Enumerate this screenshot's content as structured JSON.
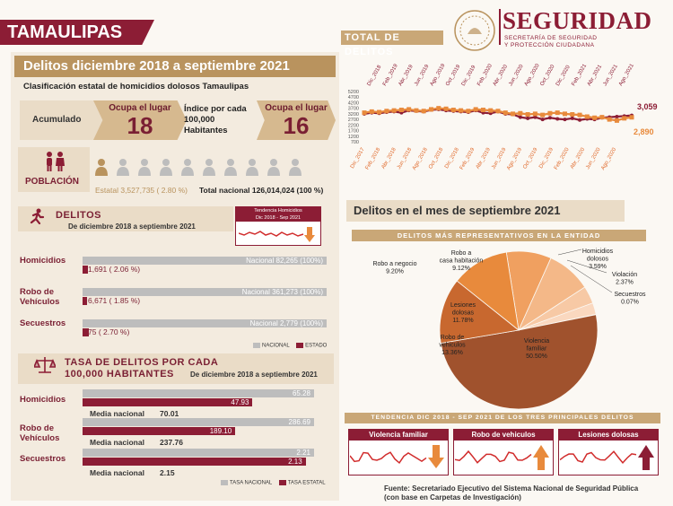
{
  "header": {
    "state": "TAMAULIPAS",
    "brand": "SEGURIDAD",
    "brand_sub1": "SECRETARÍA DE SEGURIDAD",
    "brand_sub2": "Y PROTECCIÓN CIUDADANA"
  },
  "left": {
    "title": "Delitos diciembre 2018 a septiembre 2021",
    "classification": "Clasificación estatal de homicidios dolosos Tamaulipas",
    "acumulado_label": "Acumulado",
    "rank1_small": "Ocupa el lugar",
    "rank1_value": "18",
    "indice_label": "Índice por cada 100,000 Habitantes",
    "rank2_small": "Ocupa el lugar",
    "rank2_value": "16",
    "poblacion_label": "POBLACIÓN",
    "poblacion_estatal": "Estatal 3,527,735 ( 2.80 %)",
    "poblacion_nacional": "Total nacional 126,014,024 (100 %)",
    "delitos_title": "DELITOS",
    "delitos_sub": "De diciembre 2018 a septiembre 2021",
    "tendencia_title": "Tendencia Homicidios",
    "tendencia_sub": "Dic 2018 - Sep 2021",
    "legend_nacional": "NACIONAL",
    "legend_estado": "ESTADO",
    "tasa_title1": "TASA DE DELITOS POR CADA",
    "tasa_title2": "100,000 HABITANTES",
    "tasa_sub": "De diciembre 2018 a septiembre 2021",
    "media_label": "Media nacional",
    "legend_tasa_nacional": "TASA NACIONAL",
    "legend_tasa_estatal": "TASA ESTATAL"
  },
  "delitos": [
    {
      "name": "Homicidios",
      "nacional": "Nacional 82,265 (100%)",
      "estado": "1,691 ( 2.06 %)",
      "fraction": 0.0206
    },
    {
      "name": "Robo de Vehículos",
      "nacional": "Nacional 361,273 (100%)",
      "estado": "6,671 ( 1.85 %)",
      "fraction": 0.0185
    },
    {
      "name": "Secuestros",
      "nacional": "Nacional 2,779 (100%)",
      "estado": "75 ( 2.70 %)",
      "fraction": 0.027
    }
  ],
  "tasas": [
    {
      "name": "Homicidios",
      "nacional": 65.28,
      "nacional_text": "65.28",
      "estatal": 47.93,
      "estatal_text": "47.93",
      "media": "70.01"
    },
    {
      "name": "Robo de Vehículos",
      "nacional": 286.69,
      "nacional_text": "286.69",
      "estatal": 189.1,
      "estatal_text": "189.10",
      "media": "237.76"
    },
    {
      "name": "Secuestros",
      "nacional": 2.21,
      "nacional_text": "2.21",
      "estatal": 2.13,
      "estatal_text": "2.13",
      "media": "2.15"
    }
  ],
  "right": {
    "total_title": "TOTAL DE DELITOS",
    "mes_title": "Delitos en el mes de septiembre 2021",
    "representativos": "DELITOS MÁS REPRESENTATIVOS EN LA ENTIDAD",
    "tendencia_tres": "TENDENCIA DIC 2018 - SEP 2021 DE LOS TRES PRINCIPALES DELITOS",
    "mini1": "Violencia familiar",
    "mini2": "Robo de vehiculos",
    "mini3": "Lesiones dolosas",
    "fuente1": "Fuente: Secretariado Ejecutivo del Sistema Nacional de Seguridad Pública",
    "fuente2": "(con base en Carpetas de Investigación)"
  },
  "chart_data": [
    {
      "type": "line",
      "title": "TOTAL DE DELITOS",
      "x_top": [
        "Dic_2018",
        "Feb_2019",
        "Abr_2019",
        "Jun_2019",
        "Ago_2019",
        "Oct_2019",
        "Dic_2019",
        "Feb_2020",
        "Abr_2020",
        "Jun_2020",
        "Ago_2020",
        "Oct_2020",
        "Dic_2020",
        "Feb_2021",
        "Abr_2021",
        "Jun_2021",
        "Ago_2021"
      ],
      "x_bottom": [
        "Dic_2017",
        "Feb_2018",
        "Abr_2018",
        "Jun_2018",
        "Ago_2018",
        "Oct_2018",
        "Dic_2018",
        "Feb_2019",
        "Abr_2019",
        "Jun_2019",
        "Ago_2019",
        "Oct_2019",
        "Dic_2019",
        "Feb_2020",
        "Abr_2020",
        "Jun_2020",
        "Ago_2020"
      ],
      "y_ticks": [
        "5200",
        "4700",
        "4200",
        "3700",
        "3200",
        "2700",
        "2200",
        "1700",
        "1200",
        "700"
      ],
      "ylim": [
        700,
        5200
      ],
      "series": [
        {
          "values": [
            3200,
            3300,
            3250,
            3350,
            3400,
            3300,
            3500,
            3450,
            3400,
            3550,
            3600,
            3500,
            3450,
            3400,
            3350,
            3500,
            3300,
            3250,
            3400,
            3200,
            3150,
            2900,
            2800,
            2900,
            2700,
            2850,
            2750,
            2700,
            2800,
            2650,
            2750,
            2700,
            2850,
            2900,
            2950,
            3000,
            3059
          ],
          "color": "#8c1d35"
        },
        {
          "values": [
            3300,
            3400,
            3350,
            3450,
            3500,
            3550,
            3600,
            3500,
            3450,
            3600,
            3700,
            3650,
            3550,
            3500,
            3450,
            3600,
            3550,
            3500,
            3450,
            3300,
            3200,
            3250,
            3150,
            3200,
            3100,
            3250,
            3300,
            3200,
            3150,
            3100,
            2950,
            2850,
            2900,
            2700,
            2600,
            2800,
            2890
          ],
          "color": "#e88a3c"
        }
      ],
      "annotations": [
        "3,059",
        "2,890"
      ]
    },
    {
      "type": "pie",
      "title": "DELITOS MÁS REPRESENTATIVOS EN LA ENTIDAD",
      "slices": [
        {
          "label": "Violencia familiar",
          "value": 50.5,
          "text": "50.50%",
          "color": "#a0522d"
        },
        {
          "label": "Robo de vehiculos",
          "value": 13.36,
          "text": "13.36%",
          "color": "#c8682f"
        },
        {
          "label": "Lesiones dolosas",
          "value": 11.78,
          "text": "11.78%",
          "color": "#e88a3c"
        },
        {
          "label": "Robo a negocio",
          "value": 9.2,
          "text": "9.20%",
          "color": "#f0a060"
        },
        {
          "label": "Robo a casa habitación",
          "value": 9.12,
          "text": "9.12%",
          "color": "#f4b888"
        },
        {
          "label": "Homicidios dolosos",
          "value": 3.59,
          "text": "3.59%",
          "color": "#f7c9a5"
        },
        {
          "label": "Violación",
          "value": 2.37,
          "text": "2.37%",
          "color": "#fad8bf"
        },
        {
          "label": "Secuestros",
          "value": 0.07,
          "text": "0.07%",
          "color": "#fce6d6"
        }
      ]
    }
  ]
}
